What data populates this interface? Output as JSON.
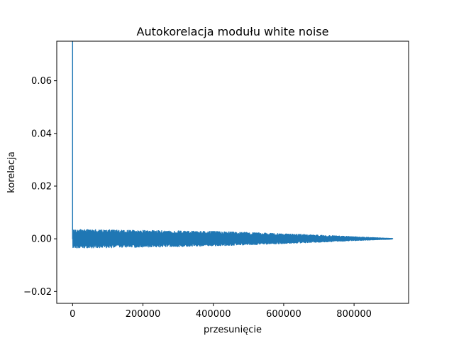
{
  "chart_data": {
    "type": "line",
    "title": "Autokorelacja modułu white noise",
    "xlabel": "przesunięcie",
    "ylabel": "korelacja",
    "xlim": [
      -45000,
      955000
    ],
    "ylim": [
      -0.0245,
      0.075
    ],
    "x_ticks": [
      0,
      200000,
      400000,
      600000,
      800000
    ],
    "x_tick_labels": [
      "0",
      "200000",
      "400000",
      "600000",
      "800000"
    ],
    "y_ticks": [
      -0.02,
      0.0,
      0.02,
      0.04,
      0.06
    ],
    "y_tick_labels": [
      "−0.02",
      "0.00",
      "0.02",
      "0.04",
      "0.06"
    ],
    "grid": false,
    "series": [
      {
        "color": "#1f77b4",
        "lag_zero_peak": {
          "x": 0,
          "y": 1.0
        },
        "noise_x_range": [
          0,
          910000
        ],
        "noise_upper_envelope": [
          {
            "x": 0,
            "y": 0.0035
          },
          {
            "x": 100000,
            "y": 0.0034
          },
          {
            "x": 200000,
            "y": 0.0032
          },
          {
            "x": 300000,
            "y": 0.003
          },
          {
            "x": 400000,
            "y": 0.0028
          },
          {
            "x": 500000,
            "y": 0.0024
          },
          {
            "x": 600000,
            "y": 0.0019
          },
          {
            "x": 700000,
            "y": 0.0014
          },
          {
            "x": 800000,
            "y": 0.0008
          },
          {
            "x": 910000,
            "y": 0.0001
          }
        ],
        "noise_lower_envelope": [
          {
            "x": 0,
            "y": -0.0035
          },
          {
            "x": 100000,
            "y": -0.0034
          },
          {
            "x": 200000,
            "y": -0.0032
          },
          {
            "x": 300000,
            "y": -0.003
          },
          {
            "x": 400000,
            "y": -0.0027
          },
          {
            "x": 500000,
            "y": -0.0023
          },
          {
            "x": 600000,
            "y": -0.0018
          },
          {
            "x": 700000,
            "y": -0.0013
          },
          {
            "x": 800000,
            "y": -0.0007
          },
          {
            "x": 910000,
            "y": -0.0001
          }
        ]
      }
    ]
  }
}
